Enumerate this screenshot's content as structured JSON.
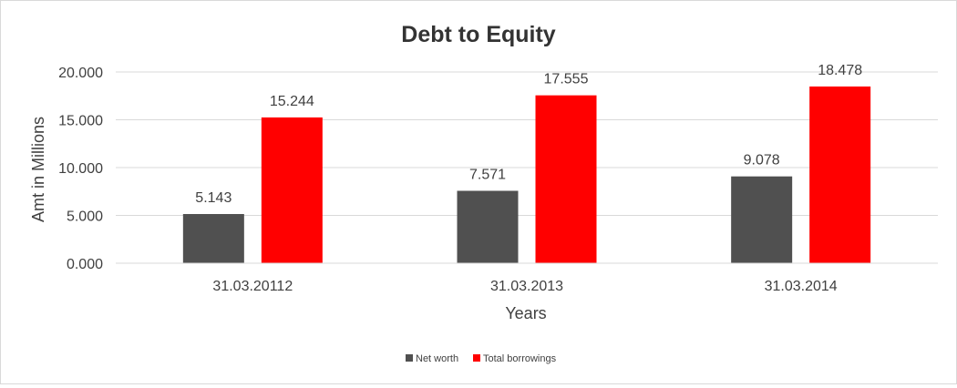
{
  "chart_data": {
    "type": "bar",
    "title": "Debt to Equity",
    "xlabel": "Years",
    "ylabel": "Amt in Millions",
    "categories": [
      "31.03.20112",
      "31.03.2013",
      "31.03.2014"
    ],
    "series": [
      {
        "name": "Net worth",
        "values": [
          5.143,
          7.571,
          9.078
        ],
        "labels": [
          "5.143",
          "7.571",
          "9.078"
        ],
        "color": "#505050"
      },
      {
        "name": "Total borrowings",
        "values": [
          15.244,
          17.555,
          18.478
        ],
        "labels": [
          "15.244",
          "17.555",
          "18.478"
        ],
        "color": "#ff0000"
      }
    ],
    "ylim": [
      0,
      20
    ],
    "yticks": [
      0,
      5,
      10,
      15,
      20
    ],
    "ytick_labels": [
      "0.000",
      "5.000",
      "10.000",
      "15.000",
      "20.000"
    ],
    "grid": true,
    "legend": "bottom"
  }
}
